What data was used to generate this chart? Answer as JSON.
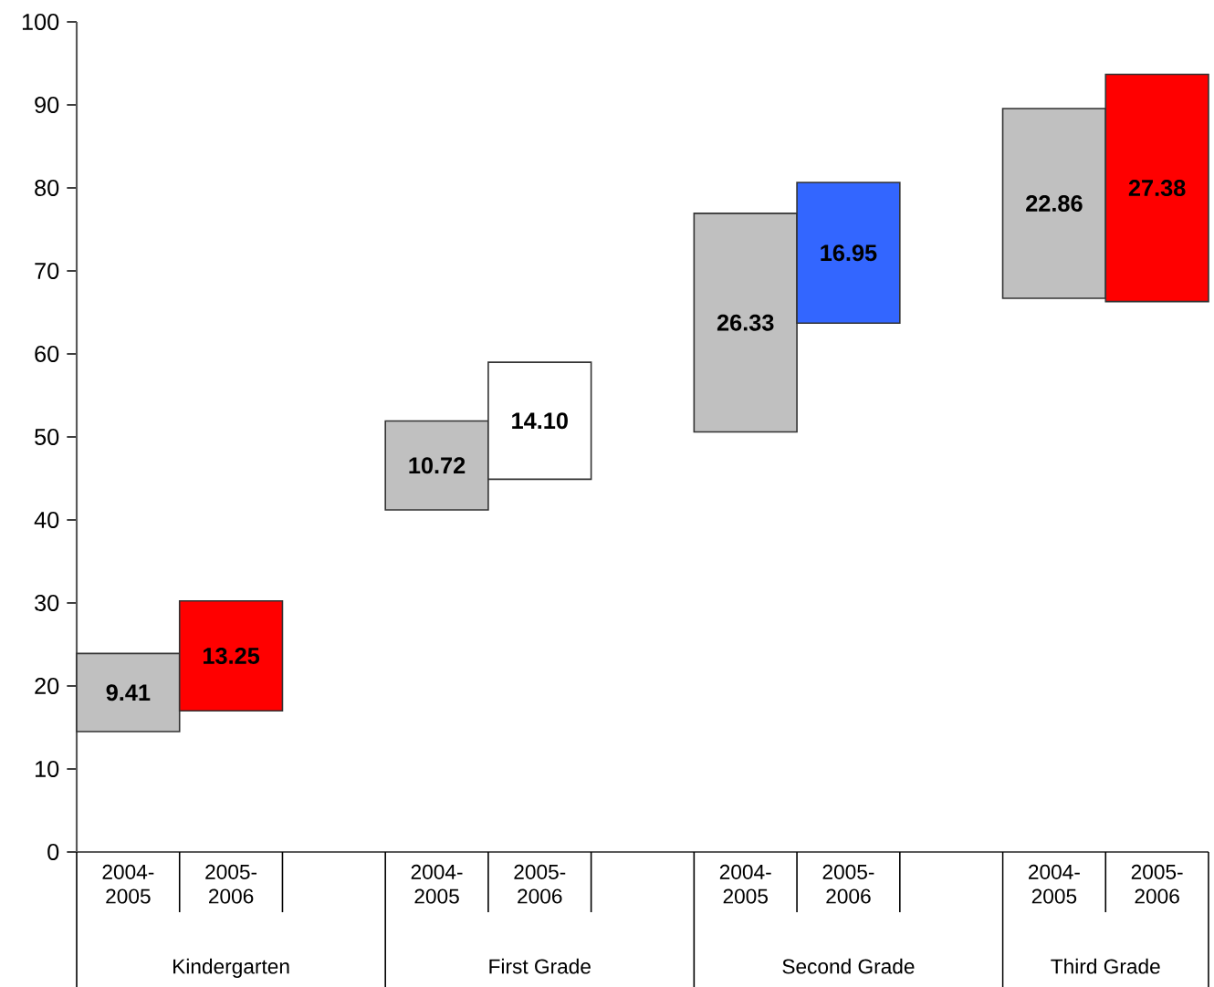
{
  "chart_data": {
    "type": "bar",
    "categories": [
      "2004-2005",
      "2005-2006",
      null,
      "2004-2005",
      "2005-2006",
      null,
      "2004-2005",
      "2005-2006",
      null,
      "2004-2005",
      "2005-2006"
    ],
    "values": [
      9.41,
      13.25,
      null,
      10.72,
      14.1,
      null,
      26.33,
      16.95,
      null,
      22.86,
      27.38
    ],
    "base": [
      14.5,
      17.0,
      null,
      41.2,
      44.9,
      null,
      50.6,
      63.7,
      null,
      66.7,
      66.3
    ],
    "colors": [
      "#c0c0c0",
      "#ff0000",
      null,
      "#c0c0c0",
      "#ffffff",
      null,
      "#c0c0c0",
      "#3366ff",
      null,
      "#c0c0c0",
      "#ff0000"
    ],
    "value_labels": [
      "9.41",
      "13.25",
      null,
      "10.72",
      "14.10",
      null,
      "26.33",
      "16.95",
      null,
      "22.86",
      "27.38"
    ],
    "ylim": [
      0,
      100
    ],
    "yticks": [
      0,
      10,
      20,
      30,
      40,
      50,
      60,
      70,
      80,
      90,
      100
    ],
    "annotations": [
      "Kindergarten",
      "First Grade",
      "Second Grade",
      "Third Grade"
    ]
  }
}
